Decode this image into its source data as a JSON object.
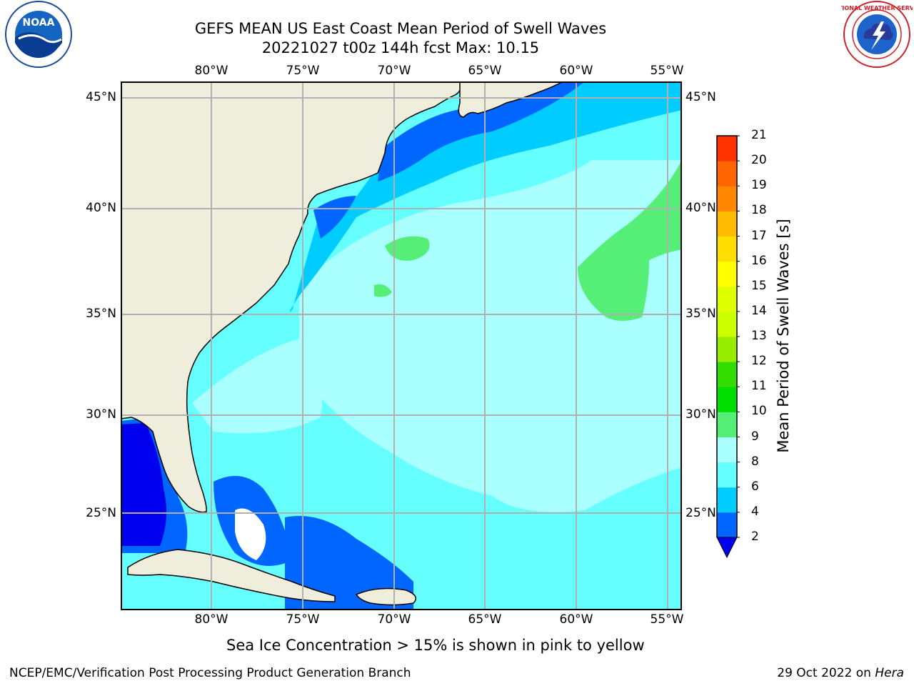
{
  "header": {
    "title_line1": "GEFS MEAN US East Coast Mean Period of Swell Waves",
    "title_line2": "20221027 t00z 144h fcst   Max: 10.15"
  },
  "logos": {
    "left": {
      "icon": "noaa-logo",
      "text": "NOAA"
    },
    "right": {
      "icon": "nws-logo",
      "ring_text": "NATIONAL WEATHER SERVICE"
    }
  },
  "map": {
    "lon_ticks": [
      "80°W",
      "75°W",
      "70°W",
      "65°W",
      "60°W",
      "55°W"
    ],
    "lat_ticks": [
      "45°N",
      "40°N",
      "35°N",
      "30°N",
      "25°N"
    ],
    "colors": {
      "land": "#efeddc",
      "grid": "#b0b0b0",
      "coast": "#000000"
    }
  },
  "colorbar": {
    "label": "Mean Period of Swell Waves [s]",
    "ticks": [
      "2",
      "4",
      "6",
      "8",
      "9",
      "10",
      "11",
      "12",
      "13",
      "14",
      "15",
      "16",
      "17",
      "18",
      "19",
      "20",
      "21"
    ],
    "colors": [
      "#0066ff",
      "#00ccff",
      "#66ffff",
      "#aaffff",
      "#55ee77",
      "#00dd00",
      "#33dd00",
      "#99ee00",
      "#ccff00",
      "#ddff00",
      "#ffff00",
      "#ffdd00",
      "#ffbb00",
      "#ff8800",
      "#ff6600",
      "#ff3300"
    ],
    "extend_color": "#0000ee"
  },
  "footer": {
    "note": "Sea Ice Concentration > 15% is shown in pink to yellow",
    "credit": "NCEP/EMC/Verification Post Processing Product Generation Branch",
    "date": "29 Oct 2022 on ",
    "machine": "Hera"
  }
}
